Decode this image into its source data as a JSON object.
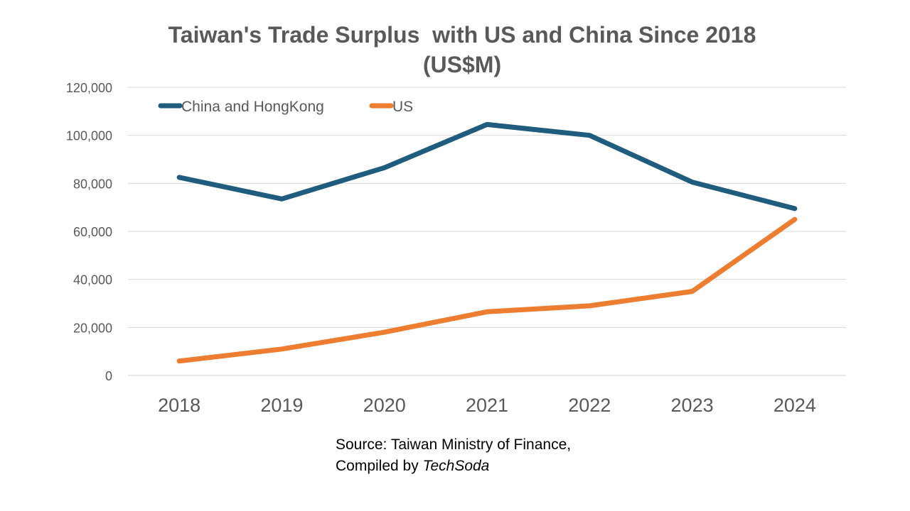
{
  "chart_data": {
    "type": "line",
    "title": "Taiwan's Trade Surplus  with US and China Since 2018 (US$M)",
    "x": [
      "2018",
      "2019",
      "2020",
      "2021",
      "2022",
      "2023",
      "2024"
    ],
    "series": [
      {
        "name": "China and HongKong",
        "color": "#1f5c7d",
        "values": [
          82500,
          73500,
          86500,
          104500,
          100000,
          80500,
          69500
        ]
      },
      {
        "name": "US",
        "color": "#ed7d31",
        "values": [
          6000,
          11000,
          18000,
          26500,
          29000,
          35000,
          65000
        ]
      }
    ],
    "yticks": [
      "0",
      "20,000",
      "40,000",
      "60,000",
      "80,000",
      "100,000",
      "120,000"
    ],
    "ylim": [
      0,
      120000
    ],
    "grid": true,
    "legend_position": "top-left"
  },
  "source": {
    "line1": "Source: Taiwan Ministry of Finance,",
    "line2_prefix": "Compiled by ",
    "brand": "TechSoda"
  }
}
